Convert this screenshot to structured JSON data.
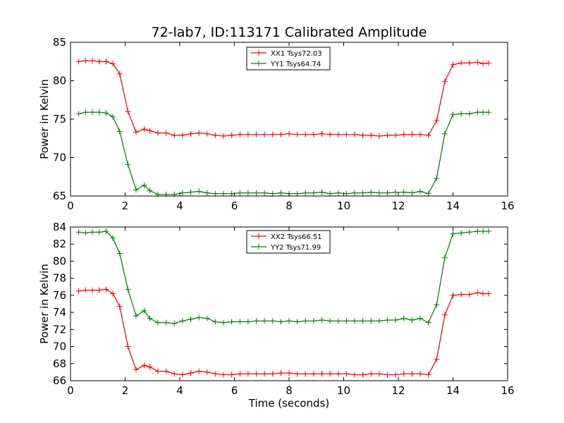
{
  "chart_data": [
    {
      "type": "line",
      "title": "72-lab7, ID:113171 Calibrated Amplitude",
      "xlabel": "",
      "ylabel": "Power in Kelvin",
      "xlim": [
        0,
        16
      ],
      "ylim": [
        65,
        85
      ],
      "xticks": [
        "0",
        "2",
        "4",
        "6",
        "8",
        "10",
        "12",
        "14",
        "16"
      ],
      "yticks": [
        "65",
        "70",
        "75",
        "80",
        "85"
      ],
      "grid": false,
      "legend": "top-center",
      "x": [
        0.3,
        0.55,
        0.8,
        1.05,
        1.3,
        1.55,
        1.8,
        2.1,
        2.4,
        2.7,
        2.9,
        3.2,
        3.5,
        3.8,
        4.1,
        4.4,
        4.7,
        5.0,
        5.3,
        5.6,
        5.9,
        6.2,
        6.5,
        6.8,
        7.1,
        7.4,
        7.7,
        8.0,
        8.3,
        8.6,
        8.9,
        9.2,
        9.5,
        9.8,
        10.1,
        10.4,
        10.7,
        11.0,
        11.3,
        11.6,
        11.9,
        12.2,
        12.5,
        12.8,
        13.1,
        13.4,
        13.7,
        14.0,
        14.3,
        14.6,
        14.9,
        15.1,
        15.3
      ],
      "series": [
        {
          "name": "XX1 Tsys72.03",
          "color": "#ff0000",
          "values": [
            82.5,
            82.6,
            82.6,
            82.5,
            82.5,
            82.2,
            80.9,
            76.0,
            73.3,
            73.7,
            73.5,
            73.2,
            73.2,
            72.9,
            72.9,
            73.1,
            73.2,
            73.1,
            72.9,
            72.8,
            72.9,
            73.0,
            73.0,
            73.0,
            73.0,
            73.0,
            73.0,
            73.1,
            73.0,
            73.0,
            73.0,
            73.1,
            73.0,
            73.0,
            73.0,
            73.0,
            72.9,
            72.9,
            72.8,
            72.9,
            72.9,
            73.0,
            73.0,
            73.0,
            72.9,
            74.8,
            79.9,
            82.1,
            82.3,
            82.3,
            82.4,
            82.2,
            82.3
          ]
        },
        {
          "name": "YY1 Tsys64.74",
          "color": "#008000",
          "values": [
            75.7,
            75.9,
            75.9,
            75.9,
            75.8,
            75.3,
            73.4,
            69.1,
            65.8,
            66.4,
            65.7,
            65.2,
            65.2,
            65.2,
            65.4,
            65.5,
            65.6,
            65.4,
            65.3,
            65.3,
            65.3,
            65.4,
            65.4,
            65.4,
            65.4,
            65.3,
            65.4,
            65.3,
            65.3,
            65.4,
            65.4,
            65.5,
            65.3,
            65.4,
            65.3,
            65.4,
            65.4,
            65.5,
            65.4,
            65.4,
            65.5,
            65.5,
            65.4,
            65.6,
            65.3,
            67.3,
            73.1,
            75.6,
            75.7,
            75.7,
            75.9,
            75.9,
            75.9
          ]
        }
      ]
    },
    {
      "type": "line",
      "title": "",
      "xlabel": "Time (seconds)",
      "ylabel": "Power in Kelvin",
      "xlim": [
        0,
        16
      ],
      "ylim": [
        66,
        84
      ],
      "xticks": [
        "0",
        "2",
        "4",
        "6",
        "8",
        "10",
        "12",
        "14",
        "16"
      ],
      "yticks": [
        "66",
        "68",
        "70",
        "72",
        "74",
        "76",
        "78",
        "80",
        "82",
        "84"
      ],
      "grid": false,
      "legend": "top-center",
      "x": [
        0.3,
        0.55,
        0.8,
        1.05,
        1.3,
        1.55,
        1.8,
        2.1,
        2.4,
        2.7,
        2.9,
        3.2,
        3.5,
        3.8,
        4.1,
        4.4,
        4.7,
        5.0,
        5.3,
        5.6,
        5.9,
        6.2,
        6.5,
        6.8,
        7.1,
        7.4,
        7.7,
        8.0,
        8.3,
        8.6,
        8.9,
        9.2,
        9.5,
        9.8,
        10.1,
        10.4,
        10.7,
        11.0,
        11.3,
        11.6,
        11.9,
        12.2,
        12.5,
        12.8,
        13.1,
        13.4,
        13.7,
        14.0,
        14.3,
        14.6,
        14.9,
        15.1,
        15.3
      ],
      "series": [
        {
          "name": "XX2 Tsys66.51",
          "color": "#ff0000",
          "values": [
            76.5,
            76.6,
            76.6,
            76.6,
            76.7,
            76.2,
            74.7,
            70.0,
            67.3,
            67.8,
            67.6,
            67.1,
            67.1,
            66.8,
            66.7,
            66.9,
            67.1,
            67.0,
            66.8,
            66.7,
            66.7,
            66.8,
            66.8,
            66.8,
            66.8,
            66.8,
            66.9,
            66.9,
            66.8,
            66.8,
            66.8,
            66.8,
            66.8,
            66.8,
            66.8,
            66.7,
            66.7,
            66.8,
            66.8,
            66.7,
            66.7,
            66.8,
            66.8,
            66.8,
            66.7,
            68.5,
            73.7,
            76.0,
            76.1,
            76.1,
            76.3,
            76.2,
            76.2
          ]
        },
        {
          "name": "YY2 Tsys71.99",
          "color": "#008000",
          "values": [
            83.4,
            83.3,
            83.4,
            83.4,
            83.5,
            82.7,
            80.9,
            76.7,
            73.6,
            74.2,
            73.3,
            72.8,
            72.8,
            72.7,
            73.0,
            73.2,
            73.4,
            73.3,
            72.9,
            72.8,
            72.9,
            72.9,
            72.9,
            73.0,
            73.0,
            73.0,
            72.9,
            73.0,
            72.9,
            73.0,
            73.0,
            73.1,
            73.0,
            73.0,
            73.0,
            73.0,
            73.0,
            73.0,
            73.0,
            73.1,
            73.1,
            73.3,
            73.1,
            73.3,
            72.8,
            74.9,
            80.4,
            83.2,
            83.3,
            83.4,
            83.5,
            83.5,
            83.5
          ]
        }
      ]
    }
  ]
}
